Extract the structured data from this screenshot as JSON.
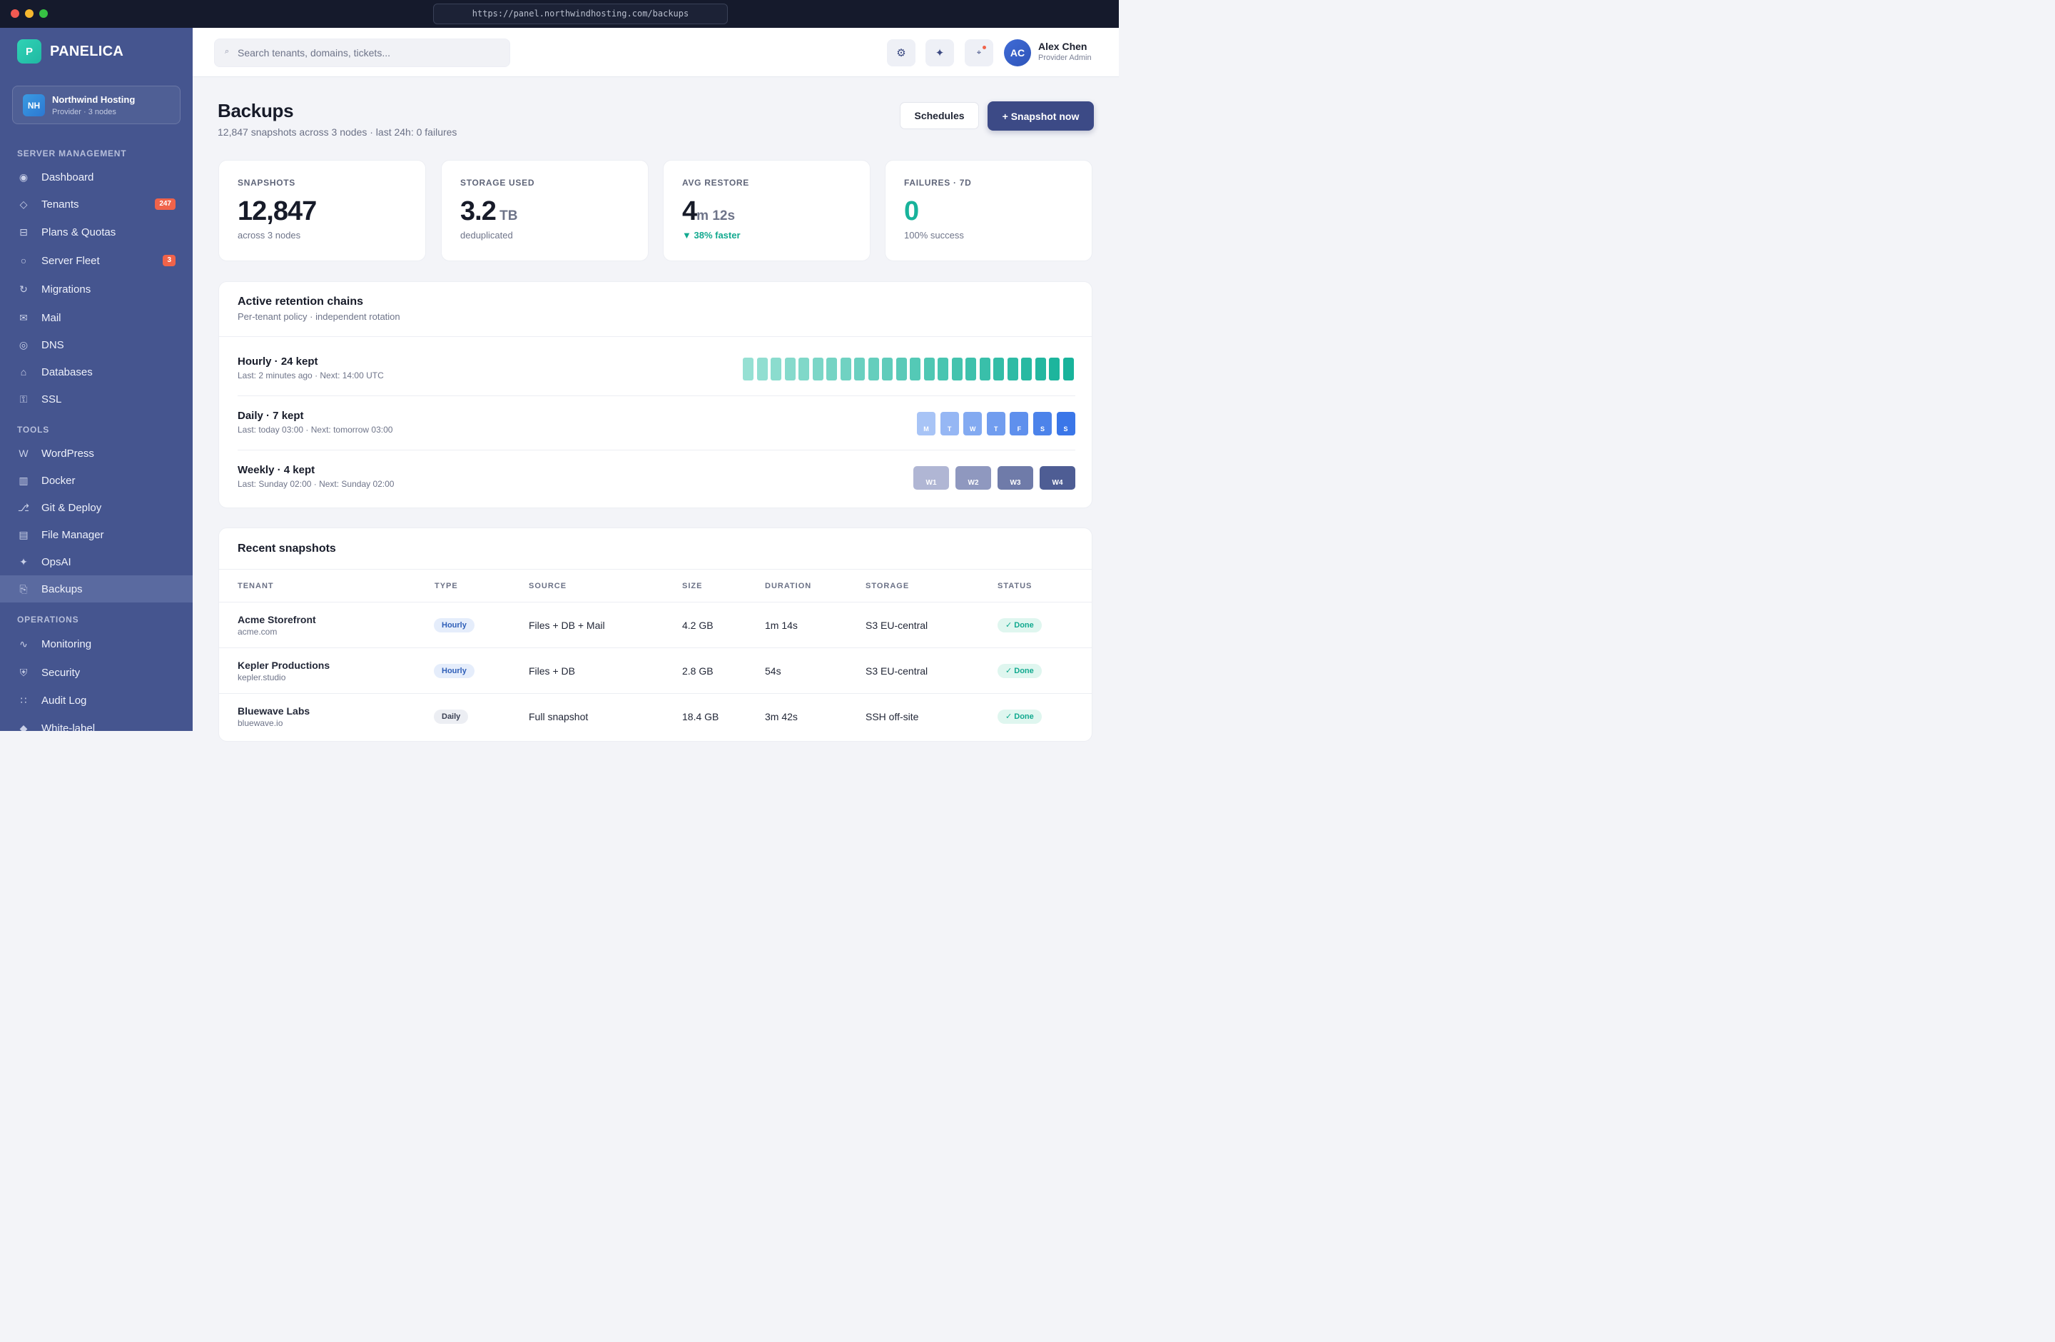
{
  "browser": {
    "url": "https://panel.northwindhosting.com/backups"
  },
  "brand": {
    "logo_letter": "P",
    "name": "PANELICA"
  },
  "org": {
    "initials": "NH",
    "name": "Northwind Hosting",
    "sub": "Provider · 3 nodes"
  },
  "sidebar": {
    "sections": {
      "server_management": "SERVER MANAGEMENT",
      "tools": "TOOLS",
      "operations": "OPERATIONS"
    },
    "items": [
      {
        "label": "Dashboard",
        "icon": "dashboard-icon",
        "glyph": "◉"
      },
      {
        "label": "Tenants",
        "icon": "tenants-icon",
        "glyph": "◇",
        "badge": "247"
      },
      {
        "label": "Plans & Quotas",
        "icon": "plans-icon",
        "glyph": "⊟"
      },
      {
        "label": "Server Fleet",
        "icon": "server-icon",
        "glyph": "○",
        "badge": "3"
      },
      {
        "label": "Migrations",
        "icon": "migrations-icon",
        "glyph": "↻"
      },
      {
        "label": "Mail",
        "icon": "mail-icon",
        "glyph": "✉"
      },
      {
        "label": "DNS",
        "icon": "dns-icon",
        "glyph": "◎"
      },
      {
        "label": "Databases",
        "icon": "database-icon",
        "glyph": "⌂"
      },
      {
        "label": "SSL",
        "icon": "ssl-icon",
        "glyph": "⚿"
      },
      {
        "label": "WordPress",
        "icon": "wordpress-icon",
        "glyph": "W"
      },
      {
        "label": "Docker",
        "icon": "docker-icon",
        "glyph": "▥"
      },
      {
        "label": "Git & Deploy",
        "icon": "git-icon",
        "glyph": "⎇"
      },
      {
        "label": "File Manager",
        "icon": "file-manager-icon",
        "glyph": "▤"
      },
      {
        "label": "OpsAI",
        "icon": "opsai-icon",
        "glyph": "✦"
      },
      {
        "label": "Backups",
        "icon": "backups-icon",
        "glyph": "⎘"
      },
      {
        "label": "Monitoring",
        "icon": "monitoring-icon",
        "glyph": "∿"
      },
      {
        "label": "Security",
        "icon": "shield-icon",
        "glyph": "⛨"
      },
      {
        "label": "Audit Log",
        "icon": "audit-log-icon",
        "glyph": "∷"
      },
      {
        "label": "White-label",
        "icon": "white-label-icon",
        "glyph": "◆"
      }
    ]
  },
  "topbar": {
    "search_placeholder": "Search tenants, domains, tickets...",
    "user": {
      "initials": "AC",
      "name": "Alex Chen",
      "role": "Provider Admin"
    }
  },
  "page": {
    "title": "Backups",
    "subtitle": "12,847 snapshots across 3 nodes · last 24h: 0 failures",
    "schedules_label": "Schedules",
    "snapshot_label": "+ Snapshot now"
  },
  "stats": [
    {
      "label": "SNAPSHOTS",
      "value": "12,847",
      "unit": "",
      "foot": "across 3 nodes"
    },
    {
      "label": "STORAGE USED",
      "value": "3.2",
      "unit": " TB",
      "foot": "deduplicated"
    },
    {
      "label": "AVG RESTORE",
      "value": "4",
      "unit": "m 12s",
      "foot": "▼ 38% faster"
    },
    {
      "label": "FAILURES · 7D",
      "value": "0",
      "unit": "",
      "foot": "100% success"
    }
  ],
  "retention": {
    "title": "Active retention chains",
    "subtitle": "Per-tenant policy · independent rotation",
    "chains": [
      {
        "title": "Hourly · 24 kept",
        "sub": "Last: 2 minutes ago · Next: 14:00 UTC",
        "kept": 24
      },
      {
        "title": "Daily · 7 kept",
        "sub": "Last: today 03:00 · Next: tomorrow 03:00",
        "days": [
          "M",
          "T",
          "W",
          "T",
          "F",
          "S",
          "S"
        ]
      },
      {
        "title": "Weekly · 4 kept",
        "sub": "Last: Sunday 02:00 · Next: Sunday 02:00",
        "weeks": [
          "W1",
          "W2",
          "W3",
          "W4"
        ]
      }
    ]
  },
  "snapshots": {
    "title": "Recent snapshots",
    "columns": [
      "TENANT",
      "TYPE",
      "SOURCE",
      "SIZE",
      "DURATION",
      "STORAGE",
      "STATUS"
    ],
    "rows": [
      {
        "tenant": "Acme Storefront",
        "domain": "acme.com",
        "type": "Hourly",
        "source": "Files + DB + Mail",
        "size": "4.2 GB",
        "duration": "1m 14s",
        "storage": "S3 EU-central",
        "status": "✓ Done"
      },
      {
        "tenant": "Kepler Productions",
        "domain": "kepler.studio",
        "type": "Hourly",
        "source": "Files + DB",
        "size": "2.8 GB",
        "duration": "54s",
        "storage": "S3 EU-central",
        "status": "✓ Done"
      },
      {
        "tenant": "Bluewave Labs",
        "domain": "bluewave.io",
        "type": "Daily",
        "source": "Full snapshot",
        "size": "18.4 GB",
        "duration": "3m 42s",
        "storage": "SSH off-site",
        "status": "✓ Done"
      }
    ]
  },
  "colors": {
    "sidebar": "#45558f",
    "primary": "#3c4a86",
    "teal": "#18b39b",
    "badge": "#f0634a"
  }
}
